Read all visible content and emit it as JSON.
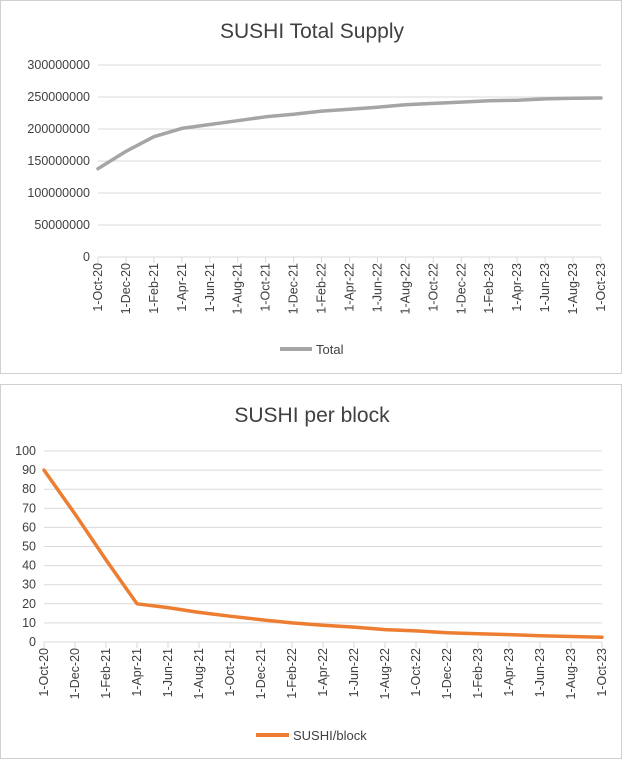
{
  "chart_data": [
    {
      "type": "line",
      "title": "SUSHI Total Supply",
      "xlabel": "",
      "ylabel": "",
      "ylim": [
        0,
        300000000
      ],
      "yticks": [
        "0",
        "50000000",
        "100000000",
        "150000000",
        "200000000",
        "250000000",
        "300000000"
      ],
      "x_ticks": [
        "1-Oct-20",
        "1-Dec-20",
        "1-Feb-21",
        "1-Apr-21",
        "1-Jun-21",
        "1-Aug-21",
        "1-Oct-21",
        "1-Dec-21",
        "1-Feb-22",
        "1-Apr-22",
        "1-Jun-22",
        "1-Aug-22",
        "1-Oct-22",
        "1-Dec-22",
        "1-Feb-23",
        "1-Apr-23",
        "1-Jun-23",
        "1-Aug-23",
        "1-Oct-23"
      ],
      "grid": true,
      "legend_position": "bottom",
      "color": "#a5a5a5",
      "series": [
        {
          "name": "Total",
          "values": [
            138000000,
            165000000,
            188000000,
            201000000,
            207000000,
            213000000,
            219000000,
            223000000,
            228000000,
            231000000,
            234000000,
            238000000,
            240000000,
            242000000,
            244000000,
            245000000,
            247000000,
            248000000,
            248500000
          ]
        }
      ]
    },
    {
      "type": "line",
      "title": "SUSHI per block",
      "xlabel": "",
      "ylabel": "",
      "ylim": [
        0,
        100
      ],
      "yticks": [
        "0",
        "10",
        "20",
        "30",
        "40",
        "50",
        "60",
        "70",
        "80",
        "90",
        "100"
      ],
      "x_ticks": [
        "1-Oct-20",
        "1-Dec-20",
        "1-Feb-21",
        "1-Apr-21",
        "1-Jun-21",
        "1-Aug-21",
        "1-Oct-21",
        "1-Dec-21",
        "1-Feb-22",
        "1-Apr-22",
        "1-Jun-22",
        "1-Aug-22",
        "1-Oct-22",
        "1-Dec-22",
        "1-Feb-23",
        "1-Apr-23",
        "1-Jun-23",
        "1-Aug-23",
        "1-Oct-23"
      ],
      "grid": true,
      "legend_position": "bottom",
      "color": "#ed7d31",
      "points": [
        {
          "x": "1-Oct-20",
          "y": 90
        },
        {
          "x": "1-Dec-20",
          "y": 67
        },
        {
          "x": "1-Feb-21",
          "y": 43
        },
        {
          "x": "1-Apr-21",
          "y": 20
        },
        {
          "x": "1-Jun-21",
          "y": 18
        },
        {
          "x": "1-Aug-21",
          "y": 15.5
        },
        {
          "x": "1-Oct-21",
          "y": 13.5
        },
        {
          "x": "1-Dec-21",
          "y": 11.7
        },
        {
          "x": "1-Feb-22",
          "y": 10
        },
        {
          "x": "1-Apr-22",
          "y": 8.8
        },
        {
          "x": "1-Jun-22",
          "y": 7.8
        },
        {
          "x": "1-Aug-22",
          "y": 6.5
        },
        {
          "x": "1-Oct-22",
          "y": 5.8
        },
        {
          "x": "1-Dec-22",
          "y": 4.8
        },
        {
          "x": "1-Feb-23",
          "y": 4.3
        },
        {
          "x": "1-Apr-23",
          "y": 3.9
        },
        {
          "x": "1-Jun-23",
          "y": 3.3
        },
        {
          "x": "1-Aug-23",
          "y": 2.9
        },
        {
          "x": "1-Oct-23",
          "y": 2.5
        }
      ],
      "series": [
        {
          "name": "SUSHI/block"
        }
      ]
    }
  ]
}
